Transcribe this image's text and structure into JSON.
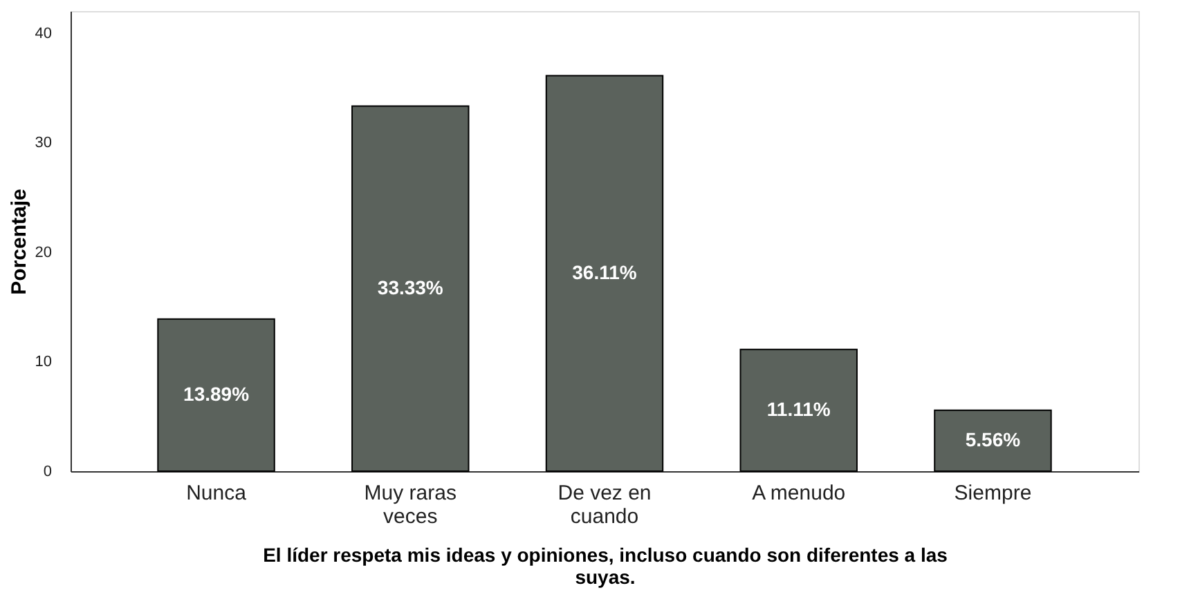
{
  "chart_data": {
    "type": "bar",
    "xlabel": "El líder respeta mis ideas y opiniones, incluso cuando son diferentes a las suyas.",
    "ylabel": "Porcentaje",
    "categories": [
      "Nunca",
      "Muy raras veces",
      "De vez en cuando",
      "A menudo",
      "Siempre"
    ],
    "values": [
      13.89,
      33.33,
      36.11,
      11.11,
      5.56
    ],
    "value_labels": [
      "13.89%",
      "33.33%",
      "36.11%",
      "11.11%",
      "5.56%"
    ],
    "color": "#5b625c",
    "ylim": [
      0,
      42
    ],
    "yticks": [
      0,
      10,
      20,
      30,
      40
    ],
    "grid": false
  }
}
